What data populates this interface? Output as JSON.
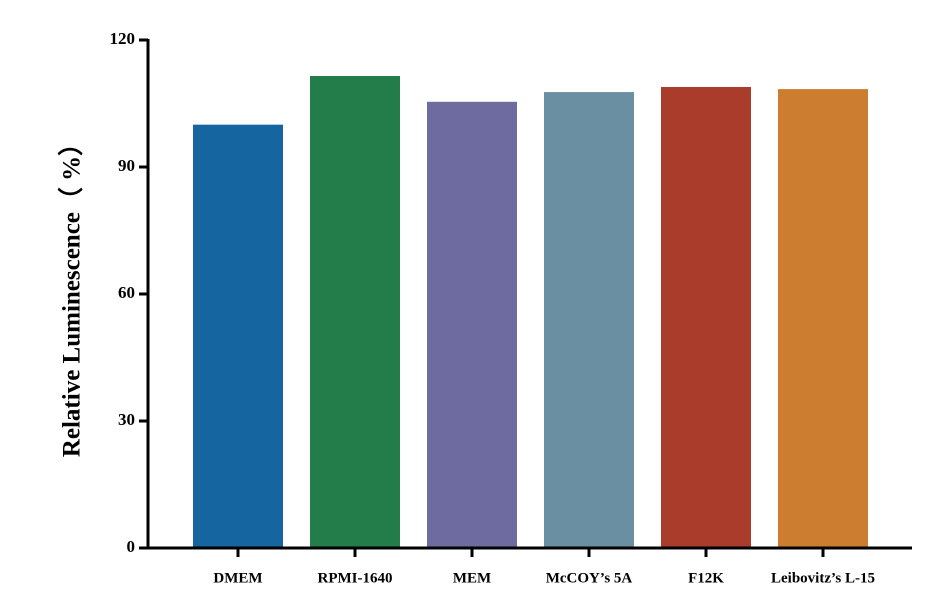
{
  "chart_data": {
    "type": "bar",
    "y_label": "Relative Luminescence（ %）",
    "categories": [
      "DMEM",
      "RPMI-1640",
      "MEM",
      "McCOY’s 5A",
      "F12K",
      "Leibovitz’s L-15"
    ],
    "values": [
      100,
      111.5,
      105.4,
      107.7,
      108.9,
      108.4
    ],
    "colors": [
      "#1565a0",
      "#227d4b",
      "#6e6ba0",
      "#6a8fa3",
      "#a93c2b",
      "#cd7d2f"
    ],
    "ylim": [
      0,
      120
    ],
    "yticks": [
      0,
      30,
      60,
      90,
      120
    ],
    "grid": false
  }
}
